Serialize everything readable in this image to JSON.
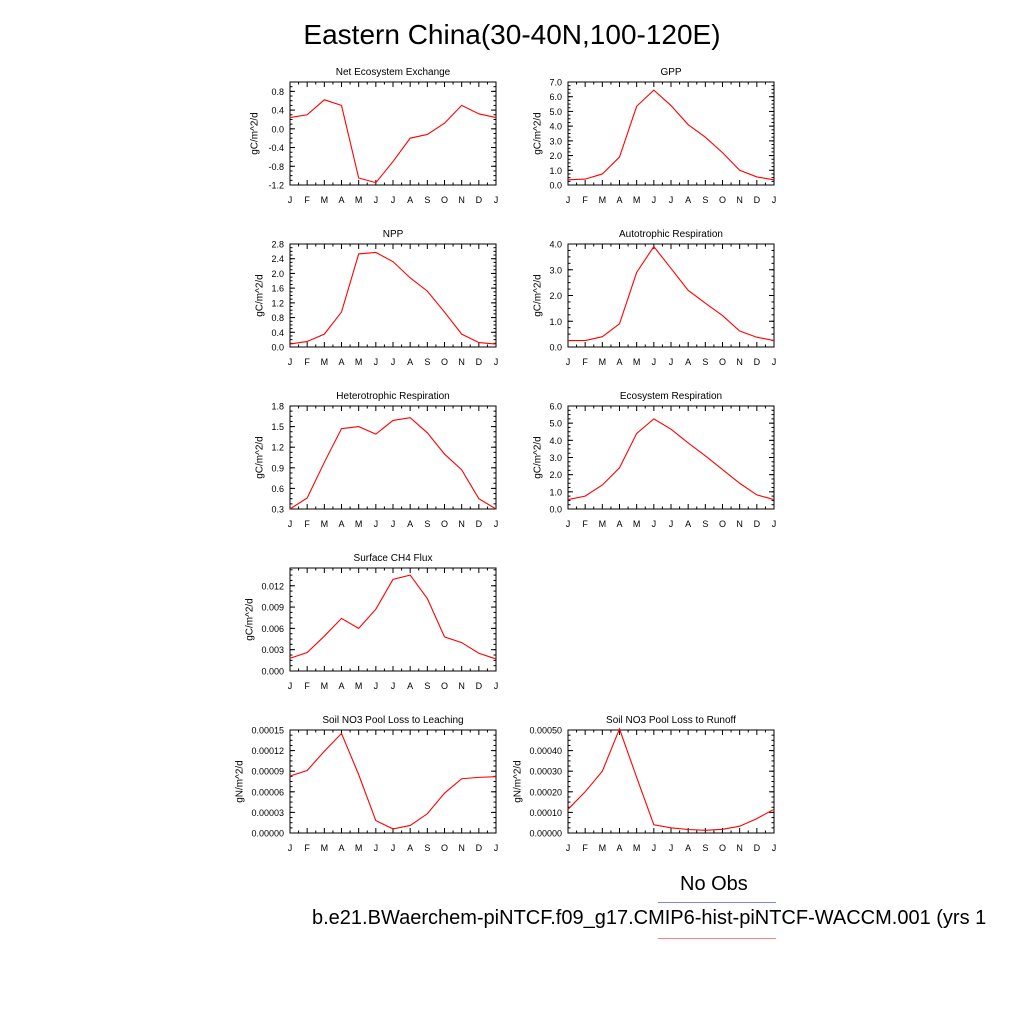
{
  "title": "Eastern China(30-40N,100-120E)",
  "legend": {
    "obs_label": "No Obs",
    "obs_color": "#7f7fff",
    "case_label": "b.e21.BWaerchem-piNTCF.f09_g17.CMIP6-hist-piNTCF-WACCM.001 (yrs 1",
    "case_color": "#ff7f7f"
  },
  "series_color": "#ff0000",
  "chart_data": [
    {
      "type": "line",
      "title": "Net Ecosystem Exchange",
      "ylabel": "gC/m^2/d",
      "xlabel": "",
      "x": [
        "J",
        "F",
        "M",
        "A",
        "M",
        "J",
        "J",
        "A",
        "S",
        "O",
        "N",
        "D",
        "J"
      ],
      "ylim": [
        -1.2,
        1.0
      ],
      "yticks": [
        "-1.2",
        "-0.8",
        "-0.4",
        "0.0",
        "0.4",
        "0.8"
      ],
      "values": [
        0.24,
        0.3,
        0.62,
        0.5,
        -1.05,
        -1.15,
        -0.7,
        -0.2,
        -0.12,
        0.12,
        0.5,
        0.32,
        0.24
      ]
    },
    {
      "type": "line",
      "title": "GPP",
      "ylabel": "gC/m^2/d",
      "xlabel": "",
      "x": [
        "J",
        "F",
        "M",
        "A",
        "M",
        "J",
        "J",
        "A",
        "S",
        "O",
        "N",
        "D",
        "J"
      ],
      "ylim": [
        0,
        7.0
      ],
      "yticks": [
        "0.0",
        "1.0",
        "2.0",
        "3.0",
        "4.0",
        "5.0",
        "6.0",
        "7.0"
      ],
      "values": [
        0.35,
        0.4,
        0.75,
        1.9,
        5.35,
        6.45,
        5.4,
        4.1,
        3.25,
        2.2,
        1.0,
        0.55,
        0.35
      ]
    },
    {
      "type": "line",
      "title": "NPP",
      "ylabel": "gC/m^2/d",
      "xlabel": "",
      "x": [
        "J",
        "F",
        "M",
        "A",
        "M",
        "J",
        "J",
        "A",
        "S",
        "O",
        "N",
        "D",
        "J"
      ],
      "ylim": [
        0,
        2.8
      ],
      "yticks": [
        "0.0",
        "0.4",
        "0.8",
        "1.2",
        "1.6",
        "2.0",
        "2.4",
        "2.8"
      ],
      "values": [
        0.08,
        0.15,
        0.35,
        0.95,
        2.53,
        2.57,
        2.32,
        1.88,
        1.52,
        0.95,
        0.35,
        0.12,
        0.08
      ]
    },
    {
      "type": "line",
      "title": "Autotrophic Respiration",
      "ylabel": "gC/m^2/d",
      "xlabel": "",
      "x": [
        "J",
        "F",
        "M",
        "A",
        "M",
        "J",
        "J",
        "A",
        "S",
        "O",
        "N",
        "D",
        "J"
      ],
      "ylim": [
        0,
        4.0
      ],
      "yticks": [
        "0.0",
        "1.0",
        "2.0",
        "3.0",
        "4.0"
      ],
      "values": [
        0.25,
        0.25,
        0.4,
        0.9,
        2.9,
        3.9,
        3.05,
        2.2,
        1.7,
        1.22,
        0.62,
        0.38,
        0.25
      ]
    },
    {
      "type": "line",
      "title": "Heterotrophic Respiration",
      "ylabel": "gC/m^2/d",
      "xlabel": "",
      "x": [
        "J",
        "F",
        "M",
        "A",
        "M",
        "J",
        "J",
        "A",
        "S",
        "O",
        "N",
        "D",
        "J"
      ],
      "ylim": [
        0.3,
        1.8
      ],
      "yticks": [
        "0.3",
        "0.6",
        "0.9",
        "1.2",
        "1.5",
        "1.8"
      ],
      "values": [
        0.3,
        0.46,
        0.98,
        1.47,
        1.5,
        1.39,
        1.59,
        1.63,
        1.41,
        1.1,
        0.87,
        0.45,
        0.3
      ]
    },
    {
      "type": "line",
      "title": "Ecosystem Respiration",
      "ylabel": "gC/m^2/d",
      "xlabel": "",
      "x": [
        "J",
        "F",
        "M",
        "A",
        "M",
        "J",
        "J",
        "A",
        "S",
        "O",
        "N",
        "D",
        "J"
      ],
      "ylim": [
        0,
        6.0
      ],
      "yticks": [
        "0.0",
        "1.0",
        "2.0",
        "3.0",
        "4.0",
        "5.0",
        "6.0"
      ],
      "values": [
        0.55,
        0.75,
        1.4,
        2.4,
        4.4,
        5.25,
        4.65,
        3.85,
        3.1,
        2.3,
        1.5,
        0.82,
        0.55
      ]
    },
    {
      "type": "line",
      "title": "Surface CH4 Flux",
      "ylabel": "gC/m^2/d",
      "xlabel": "",
      "x": [
        "J",
        "F",
        "M",
        "A",
        "M",
        "J",
        "J",
        "A",
        "S",
        "O",
        "N",
        "D",
        "J"
      ],
      "ylim": [
        0,
        0.0145
      ],
      "yticks": [
        "0.000",
        "0.003",
        "0.006",
        "0.009",
        "0.012"
      ],
      "values": [
        0.0018,
        0.0026,
        0.0049,
        0.0074,
        0.006,
        0.0087,
        0.0129,
        0.0135,
        0.0102,
        0.0048,
        0.004,
        0.0025,
        0.0017
      ]
    },
    {
      "type": "line",
      "title": "Soil NO3 Pool Loss to Leaching",
      "ylabel": "gN/m^2/d",
      "xlabel": "",
      "x": [
        "J",
        "F",
        "M",
        "A",
        "M",
        "J",
        "J",
        "A",
        "S",
        "O",
        "N",
        "D",
        "J"
      ],
      "ylim": [
        0,
        0.00015
      ],
      "yticks": [
        "0.00000",
        "0.00003",
        "0.00006",
        "0.00009",
        "0.00012",
        "0.00015"
      ],
      "values": [
        8.3e-05,
        9.1e-05,
        0.000119,
        0.000145,
        8.5e-05,
        1.8e-05,
        6e-06,
        1.1e-05,
        2.8e-05,
        5.8e-05,
        7.9e-05,
        8.1e-05,
        8.2e-05
      ]
    },
    {
      "type": "line",
      "title": "Soil NO3 Pool Loss to Runoff",
      "ylabel": "gN/m^2/d",
      "xlabel": "",
      "x": [
        "J",
        "F",
        "M",
        "A",
        "M",
        "J",
        "J",
        "A",
        "S",
        "O",
        "N",
        "D",
        "J"
      ],
      "ylim": [
        0,
        0.0005
      ],
      "yticks": [
        "0.00000",
        "0.00010",
        "0.00020",
        "0.00030",
        "0.00040",
        "0.00050"
      ],
      "values": [
        0.000115,
        0.0002,
        0.0003,
        0.000505,
        0.00027,
        4e-05,
        2.5e-05,
        1.7e-05,
        1.3e-05,
        1.8e-05,
        3.3e-05,
        7e-05,
        0.000115
      ]
    }
  ]
}
